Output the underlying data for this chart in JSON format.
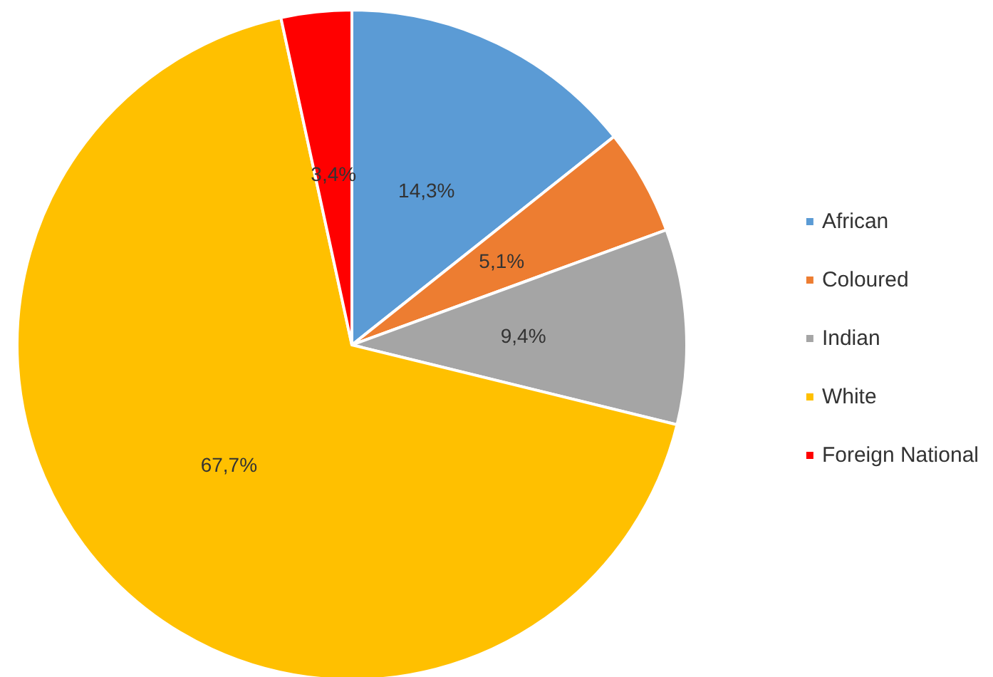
{
  "chart_data": {
    "type": "pie",
    "categories": [
      "African",
      "Coloured",
      "Indian",
      "White",
      "Foreign National"
    ],
    "values": [
      14.3,
      5.1,
      9.4,
      67.7,
      3.4
    ],
    "colors": [
      "#5b9bd5",
      "#ed7d31",
      "#a5a5a5",
      "#ffc000",
      "#ff0000"
    ],
    "value_labels": [
      "14,3%",
      "5,1%",
      "9,4%",
      "67,7%",
      "3,4%"
    ],
    "legend": "right"
  }
}
